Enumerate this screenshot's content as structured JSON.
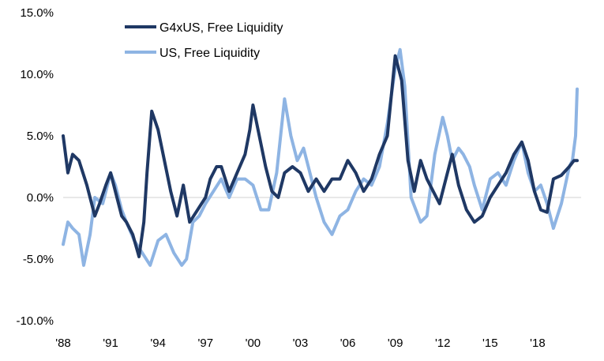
{
  "chart_data": {
    "type": "line",
    "title": "",
    "xlabel": "",
    "ylabel": "",
    "ylim": [
      -10,
      15
    ],
    "y_ticks": [
      -10,
      -5,
      0,
      5,
      10,
      15
    ],
    "y_tick_labels": [
      "-10.0%",
      "-5.0%",
      "0.0%",
      "5.0%",
      "10.0%",
      "15.0%"
    ],
    "xlim": [
      1988,
      2020.75
    ],
    "x_ticks": [
      1988,
      1991,
      1994,
      1997,
      2000,
      2003,
      2006,
      2009,
      2012,
      2015,
      2018
    ],
    "x_tick_labels": [
      "'88",
      "'91",
      "'94",
      "'97",
      "'00",
      "'03",
      "'06",
      "'09",
      "'12",
      "'15",
      "'18"
    ],
    "grid": false,
    "zero_line": true,
    "legend_position": "top-center",
    "series": [
      {
        "name": "G4xUS, Free Liquidity",
        "color": "#1f3864",
        "x": [
          1988.0,
          1988.3,
          1988.6,
          1989.0,
          1989.5,
          1990.0,
          1990.3,
          1990.7,
          1991.0,
          1991.3,
          1991.7,
          1992.0,
          1992.4,
          1992.8,
          1993.1,
          1993.3,
          1993.6,
          1994.0,
          1994.4,
          1994.8,
          1995.2,
          1995.6,
          1996.0,
          1996.5,
          1997.0,
          1997.3,
          1997.7,
          1998.0,
          1998.5,
          1999.0,
          1999.5,
          1999.8,
          2000.0,
          2000.4,
          2000.8,
          2001.2,
          2001.6,
          2002.0,
          2002.5,
          2003.0,
          2003.5,
          2004.0,
          2004.5,
          2005.0,
          2005.5,
          2006.0,
          2006.5,
          2007.0,
          2007.5,
          2008.0,
          2008.5,
          2009.0,
          2009.4,
          2009.8,
          2010.2,
          2010.6,
          2011.0,
          2011.4,
          2011.8,
          2012.2,
          2012.6,
          2013.0,
          2013.5,
          2014.0,
          2014.5,
          2015.0,
          2015.5,
          2016.0,
          2016.5,
          2017.0,
          2017.4,
          2017.8,
          2018.2,
          2018.6,
          2019.0,
          2019.5,
          2020.0,
          2020.3,
          2020.5
        ],
        "y": [
          5.0,
          2.0,
          3.5,
          3.0,
          1.0,
          -1.5,
          -0.5,
          1.0,
          2.0,
          0.5,
          -1.5,
          -2.0,
          -3.0,
          -4.8,
          -2.0,
          2.0,
          7.0,
          5.5,
          3.0,
          0.5,
          -1.5,
          1.0,
          -2.0,
          -1.0,
          0.0,
          1.5,
          2.5,
          2.5,
          0.5,
          2.0,
          3.5,
          5.5,
          7.5,
          5.0,
          2.5,
          0.5,
          0.0,
          2.0,
          2.5,
          2.0,
          0.5,
          1.5,
          0.5,
          1.5,
          1.5,
          3.0,
          2.0,
          0.5,
          1.5,
          3.5,
          5.0,
          11.5,
          9.5,
          3.0,
          0.5,
          3.0,
          1.5,
          0.5,
          -0.5,
          1.5,
          3.5,
          1.0,
          -1.0,
          -2.0,
          -1.5,
          0.0,
          1.0,
          2.0,
          3.5,
          4.5,
          3.0,
          0.5,
          -1.0,
          -1.2,
          1.5,
          1.8,
          2.5,
          3.0,
          3.0
        ]
      },
      {
        "name": "US, Free Liquidity",
        "color": "#8eb4e3",
        "x": [
          1988.0,
          1988.3,
          1988.6,
          1989.0,
          1989.3,
          1989.7,
          1990.0,
          1990.5,
          1991.0,
          1991.3,
          1991.7,
          1992.0,
          1992.5,
          1993.0,
          1993.5,
          1994.0,
          1994.5,
          1995.0,
          1995.5,
          1995.8,
          1996.2,
          1996.6,
          1997.0,
          1997.5,
          1998.0,
          1998.5,
          1999.0,
          1999.5,
          2000.0,
          2000.5,
          2001.0,
          2001.5,
          2002.0,
          2002.4,
          2002.8,
          2003.2,
          2003.6,
          2004.0,
          2004.5,
          2005.0,
          2005.5,
          2006.0,
          2006.5,
          2007.0,
          2007.5,
          2008.0,
          2008.5,
          2009.0,
          2009.3,
          2009.6,
          2010.0,
          2010.3,
          2010.6,
          2011.0,
          2011.5,
          2012.0,
          2012.3,
          2012.6,
          2013.0,
          2013.3,
          2013.7,
          2014.0,
          2014.5,
          2015.0,
          2015.5,
          2016.0,
          2016.5,
          2017.0,
          2017.4,
          2017.8,
          2018.2,
          2018.6,
          2019.0,
          2019.5,
          2020.0,
          2020.2,
          2020.4,
          2020.5
        ],
        "y": [
          -3.8,
          -2.0,
          -2.5,
          -3.0,
          -5.5,
          -3.0,
          0.0,
          -0.5,
          2.0,
          1.0,
          -1.0,
          -2.0,
          -3.5,
          -4.5,
          -5.5,
          -3.5,
          -3.0,
          -4.5,
          -5.5,
          -5.0,
          -2.0,
          -1.5,
          -0.5,
          0.5,
          1.5,
          0.0,
          1.5,
          1.5,
          1.0,
          -1.0,
          -1.0,
          2.0,
          8.0,
          5.0,
          3.0,
          4.0,
          2.0,
          0.0,
          -2.0,
          -3.0,
          -1.5,
          -1.0,
          0.5,
          1.5,
          1.0,
          2.5,
          6.0,
          10.5,
          12.0,
          9.0,
          0.0,
          -1.0,
          -2.0,
          -1.5,
          3.5,
          6.5,
          5.0,
          3.0,
          4.0,
          3.5,
          2.5,
          1.0,
          -1.0,
          1.5,
          2.0,
          1.0,
          3.0,
          4.5,
          2.0,
          0.5,
          1.0,
          -0.5,
          -2.5,
          -0.5,
          2.5,
          3.0,
          5.0,
          8.8
        ]
      }
    ]
  }
}
